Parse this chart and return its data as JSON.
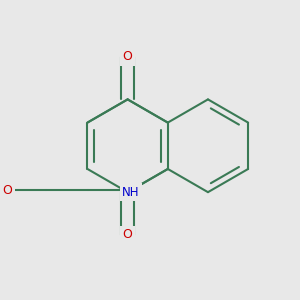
{
  "bg_color": "#e8e8e8",
  "bond_color": "#3a7a55",
  "bond_lw": 1.5,
  "atom_colors": {
    "O": "#cc0000",
    "N": "#0000cc",
    "C": "#3a7a55"
  },
  "label_fontsize": 9.0,
  "fig_size": [
    3.0,
    3.0
  ],
  "dpi": 100,
  "xlim": [
    -0.05,
    1.35
  ],
  "ylim": [
    0.0,
    1.3
  ]
}
